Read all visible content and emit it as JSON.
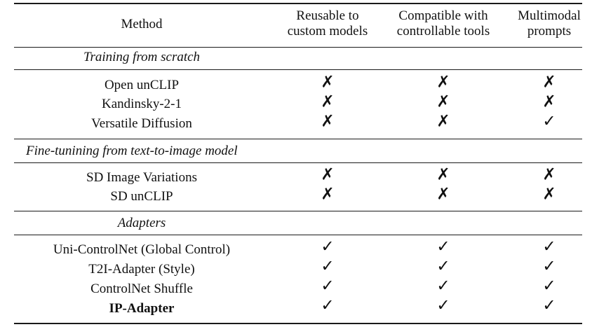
{
  "columns": {
    "method": "Method",
    "reusable": [
      "Reusable to",
      "custom models"
    ],
    "compatible": [
      "Compatible with",
      "controllable tools"
    ],
    "multimodal": [
      "Multimodal",
      "prompts"
    ]
  },
  "sections": [
    {
      "title": "Training from scratch",
      "rows": [
        {
          "method": "Open unCLIP",
          "reusable": "✗",
          "compatible": "✗",
          "multimodal": "✗"
        },
        {
          "method": "Kandinsky-2-1",
          "reusable": "✗",
          "compatible": "✗",
          "multimodal": "✗"
        },
        {
          "method": "Versatile Diffusion",
          "reusable": "✗",
          "compatible": "✗",
          "multimodal": "✓"
        }
      ]
    },
    {
      "title": "Fine-tunining from text-to-image model",
      "rows": [
        {
          "method": "SD Image Variations",
          "reusable": "✗",
          "compatible": "✗",
          "multimodal": "✗"
        },
        {
          "method": "SD unCLIP",
          "reusable": "✗",
          "compatible": "✗",
          "multimodal": "✗"
        }
      ]
    },
    {
      "title": "Adapters",
      "rows": [
        {
          "method": "Uni-ControlNet (Global Control)",
          "reusable": "✓",
          "compatible": "✓",
          "multimodal": "✓"
        },
        {
          "method": "T2I-Adapter (Style)",
          "reusable": "✓",
          "compatible": "✓",
          "multimodal": "✓"
        },
        {
          "method": "ControlNet Shuffle",
          "reusable": "✓",
          "compatible": "✓",
          "multimodal": "✓"
        },
        {
          "method": "IP-Adapter",
          "reusable": "✓",
          "compatible": "✓",
          "multimodal": "✓"
        }
      ]
    }
  ]
}
